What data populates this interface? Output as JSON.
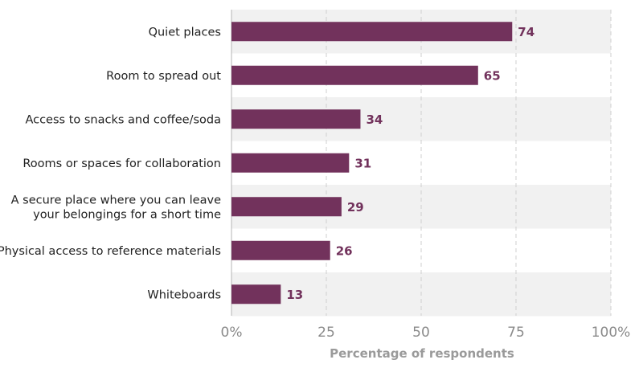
{
  "chart_data": {
    "type": "bar",
    "orientation": "horizontal",
    "categories": [
      "Quiet places",
      "Room to spread out",
      "Access to snacks and coffee/soda",
      "Rooms or spaces for collaboration",
      "A secure place where you can leave your belongings for a short time",
      "Physical access to reference materials",
      "Whiteboards"
    ],
    "category_lines": [
      [
        "Quiet places"
      ],
      [
        "Room to spread out"
      ],
      [
        "Access to snacks and coffee/soda"
      ],
      [
        "Rooms or spaces for collaboration"
      ],
      [
        "A secure place where you can leave",
        "your belongings for a short time"
      ],
      [
        "Physical access to reference materials"
      ],
      [
        "Whiteboards"
      ]
    ],
    "values": [
      74,
      65,
      34,
      31,
      29,
      26,
      13
    ],
    "data_labels": [
      "74",
      "65",
      "34",
      "31",
      "29",
      "26",
      "13"
    ],
    "xlabel": "Percentage of respondents",
    "ylabel": "",
    "xlim": [
      0,
      100
    ],
    "xticks": [
      0,
      25,
      50,
      75,
      100
    ],
    "xtick_labels": [
      "0%",
      "25",
      "50",
      "75",
      "100%"
    ],
    "grid": "vertical dashed",
    "row_banding": true,
    "colors": {
      "bar": "#72325c",
      "value_label": "#72325c",
      "band": "#f1f1f1",
      "grid": "#cfcfcf"
    }
  }
}
